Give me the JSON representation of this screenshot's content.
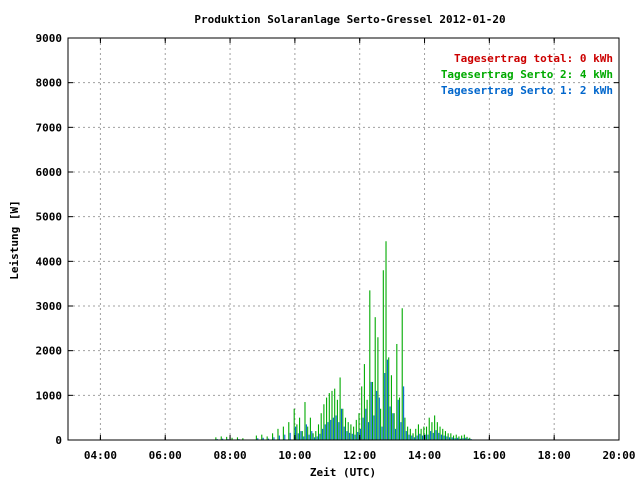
{
  "chart_data": {
    "type": "bar",
    "title": "Produktion Solaranlage Serto-Gressel 2012-01-20",
    "xlabel": "Zeit (UTC)",
    "ylabel": "Leistung [W]",
    "ylim": [
      0,
      9000
    ],
    "xlim": [
      "03:00",
      "20:00"
    ],
    "y_ticks": [
      "0",
      "1000",
      "2000",
      "3000",
      "4000",
      "5000",
      "6000",
      "7000",
      "8000",
      "9000"
    ],
    "x_ticks": [
      "04:00",
      "06:00",
      "08:00",
      "10:00",
      "12:00",
      "14:00",
      "16:00",
      "18:00",
      "20:00"
    ],
    "grid": true,
    "legend_position": "top-right",
    "legend": [
      {
        "name": "Tagesertrag total: 0 kWh",
        "color": "#cc0000"
      },
      {
        "name": "Tagesertrag Serto 2: 4 kWh",
        "color": "#00aa00"
      },
      {
        "name": "Tagesertrag Serto 1: 2 kWh",
        "color": "#0066cc"
      }
    ],
    "x": [
      "07:35",
      "07:45",
      "07:55",
      "08:05",
      "08:15",
      "08:25",
      "08:50",
      "09:00",
      "09:10",
      "09:20",
      "09:30",
      "09:40",
      "09:50",
      "10:00",
      "10:05",
      "10:10",
      "10:15",
      "10:20",
      "10:25",
      "10:30",
      "10:35",
      "10:40",
      "10:45",
      "10:50",
      "10:55",
      "11:00",
      "11:05",
      "11:10",
      "11:15",
      "11:20",
      "11:25",
      "11:30",
      "11:35",
      "11:40",
      "11:45",
      "11:50",
      "11:55",
      "12:00",
      "12:05",
      "12:10",
      "12:15",
      "12:20",
      "12:25",
      "12:30",
      "12:35",
      "12:40",
      "12:45",
      "12:50",
      "12:55",
      "13:00",
      "13:05",
      "13:10",
      "13:15",
      "13:20",
      "13:25",
      "13:30",
      "13:35",
      "13:40",
      "13:45",
      "13:50",
      "13:55",
      "14:00",
      "14:05",
      "14:10",
      "14:15",
      "14:20",
      "14:25",
      "14:30",
      "14:35",
      "14:40",
      "14:45",
      "14:50",
      "14:55",
      "15:00",
      "15:05",
      "15:10",
      "15:15",
      "15:20",
      "15:25"
    ],
    "series": [
      {
        "name": "Tagesertrag Serto 2: 4 kWh",
        "color": "#00aa00",
        "values": [
          60,
          80,
          70,
          50,
          60,
          40,
          100,
          120,
          80,
          150,
          250,
          300,
          400,
          700,
          350,
          500,
          200,
          850,
          300,
          500,
          150,
          200,
          350,
          600,
          800,
          950,
          1050,
          1100,
          1150,
          900,
          1400,
          700,
          500,
          400,
          350,
          300,
          450,
          600,
          1200,
          1700,
          900,
          3350,
          1300,
          2750,
          2300,
          700,
          3800,
          4450,
          1850,
          1450,
          600,
          2150,
          950,
          2950,
          500,
          300,
          250,
          150,
          250,
          350,
          250,
          300,
          300,
          500,
          400,
          550,
          400,
          300,
          250,
          200,
          150,
          150,
          100,
          120,
          80,
          100,
          120,
          70,
          50
        ]
      },
      {
        "name": "Tagesertrag Serto 1: 2 kWh",
        "color": "#0066cc",
        "values": [
          20,
          30,
          20,
          10,
          20,
          10,
          40,
          50,
          30,
          60,
          100,
          120,
          160,
          300,
          150,
          200,
          80,
          350,
          120,
          200,
          60,
          80,
          140,
          250,
          350,
          400,
          450,
          500,
          550,
          400,
          700,
          300,
          200,
          160,
          140,
          120,
          180,
          250,
          500,
          700,
          400,
          1300,
          550,
          1100,
          950,
          300,
          1500,
          1800,
          750,
          600,
          250,
          900,
          400,
          1200,
          200,
          120,
          100,
          60,
          100,
          140,
          100,
          120,
          120,
          200,
          160,
          220,
          160,
          120,
          100,
          80,
          60,
          60,
          40,
          50,
          30,
          40,
          50,
          30,
          20
        ]
      }
    ]
  }
}
